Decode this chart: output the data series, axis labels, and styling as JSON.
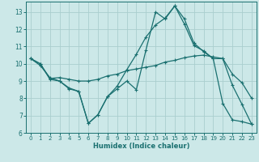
{
  "xlabel": "Humidex (Indice chaleur)",
  "background_color": "#cce8e8",
  "grid_color": "#aacece",
  "line_color": "#1a7070",
  "xlim": [
    -0.5,
    23.5
  ],
  "ylim": [
    6.0,
    13.6
  ],
  "yticks": [
    6,
    7,
    8,
    9,
    10,
    11,
    12,
    13
  ],
  "xticks": [
    0,
    1,
    2,
    3,
    4,
    5,
    6,
    7,
    8,
    9,
    10,
    11,
    12,
    13,
    14,
    15,
    16,
    17,
    18,
    19,
    20,
    21,
    22,
    23
  ],
  "line1_x": [
    0,
    1,
    2,
    3,
    4,
    5,
    6,
    7,
    8,
    9,
    10,
    11,
    12,
    13,
    14,
    15,
    16,
    17,
    18,
    19,
    20,
    21,
    22,
    23
  ],
  "line1_y": [
    10.3,
    10.0,
    9.1,
    9.0,
    8.6,
    8.4,
    6.55,
    7.05,
    8.1,
    8.55,
    9.0,
    8.5,
    10.8,
    13.0,
    12.6,
    13.35,
    12.3,
    11.05,
    10.75,
    10.3,
    10.3,
    8.75,
    7.65,
    6.5
  ],
  "line2_x": [
    0,
    1,
    2,
    3,
    4,
    5,
    6,
    7,
    8,
    9,
    10,
    11,
    12,
    13,
    14,
    15,
    16,
    17,
    18,
    19,
    20,
    21,
    22,
    23
  ],
  "line2_y": [
    10.3,
    10.0,
    9.15,
    9.2,
    9.1,
    9.0,
    9.0,
    9.1,
    9.3,
    9.4,
    9.6,
    9.7,
    9.8,
    9.9,
    10.1,
    10.2,
    10.35,
    10.45,
    10.5,
    10.4,
    10.3,
    9.4,
    8.9,
    8.0
  ],
  "line3_x": [
    0,
    1,
    2,
    3,
    4,
    5,
    6,
    7,
    8,
    9,
    10,
    11,
    12,
    13,
    14,
    15,
    16,
    17,
    18,
    19,
    20,
    21,
    22,
    23
  ],
  "line3_y": [
    10.3,
    9.9,
    9.2,
    9.0,
    8.55,
    8.4,
    6.55,
    7.05,
    8.1,
    8.7,
    9.65,
    10.55,
    11.55,
    12.25,
    12.65,
    13.35,
    12.6,
    11.2,
    10.7,
    10.3,
    7.7,
    6.75,
    6.65,
    6.5
  ]
}
